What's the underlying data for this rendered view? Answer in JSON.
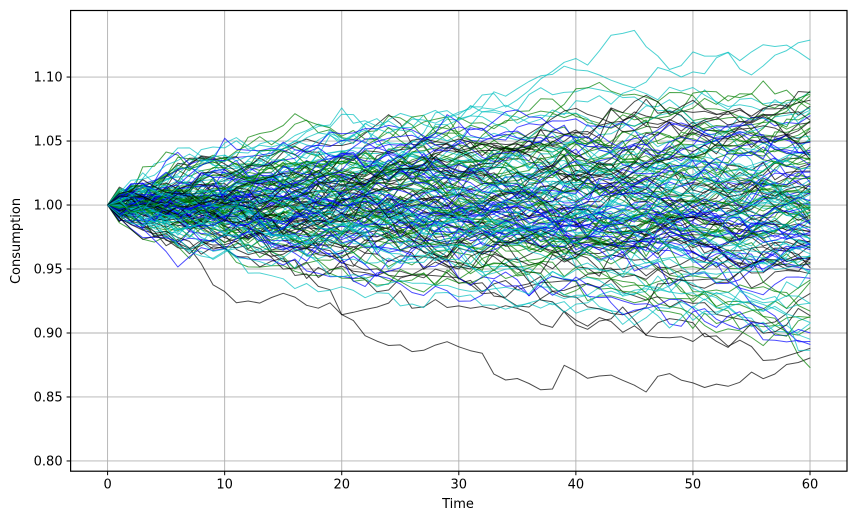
{
  "chart_data": {
    "type": "line",
    "title": "",
    "xlabel": "Time",
    "ylabel": "Consumption",
    "x_ticks": [
      0,
      10,
      20,
      30,
      40,
      50,
      60
    ],
    "x_tick_labels": [
      "0",
      "10",
      "20",
      "30",
      "40",
      "50",
      "60"
    ],
    "y_ticks": [
      0.8,
      0.85,
      0.9,
      0.95,
      1.0,
      1.05,
      1.1
    ],
    "y_tick_labels": [
      "0.80",
      "0.85",
      "0.90",
      "0.95",
      "1.00",
      "1.05",
      "1.10"
    ],
    "xlim": [
      -3.16,
      63.16
    ],
    "ylim": [
      0.792,
      1.152
    ],
    "grid": true,
    "grid_color": "#b0b0b0",
    "spine_color": "#000000",
    "legend": "none",
    "series_description": "Monte Carlo ensemble of simulated consumption paths; every path starts at 1.00 at time 0 and follows a driftless random walk, fanning out to roughly 0.81-1.13 by time 60",
    "simulation": {
      "n_paths": 160,
      "t_max": 60,
      "start_value": 1.0,
      "step_std": 0.006,
      "seed": 7
    },
    "line_colors": [
      "#000000",
      "#0000ff",
      "#008000",
      "#00bfbf"
    ],
    "line_opacity": 0.7,
    "line_width": 1.0
  }
}
